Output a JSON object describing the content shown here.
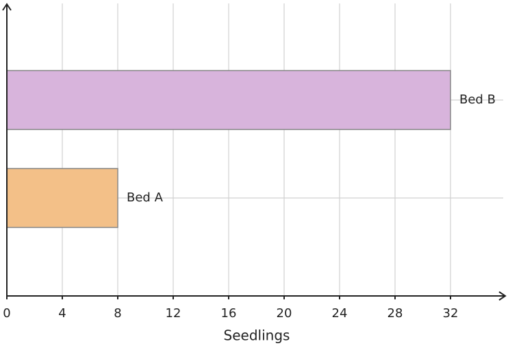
{
  "chart_data": {
    "type": "barh",
    "x_label": "Seedlings",
    "categories": [
      "Bed A",
      "Bed B"
    ],
    "values": [
      8,
      32
    ],
    "colors": [
      "#f3c088",
      "#d8b4dc"
    ],
    "xlim": [
      0,
      36
    ],
    "xticks": [
      0,
      4,
      8,
      12,
      16,
      20,
      24,
      28,
      32
    ],
    "grid": true
  }
}
